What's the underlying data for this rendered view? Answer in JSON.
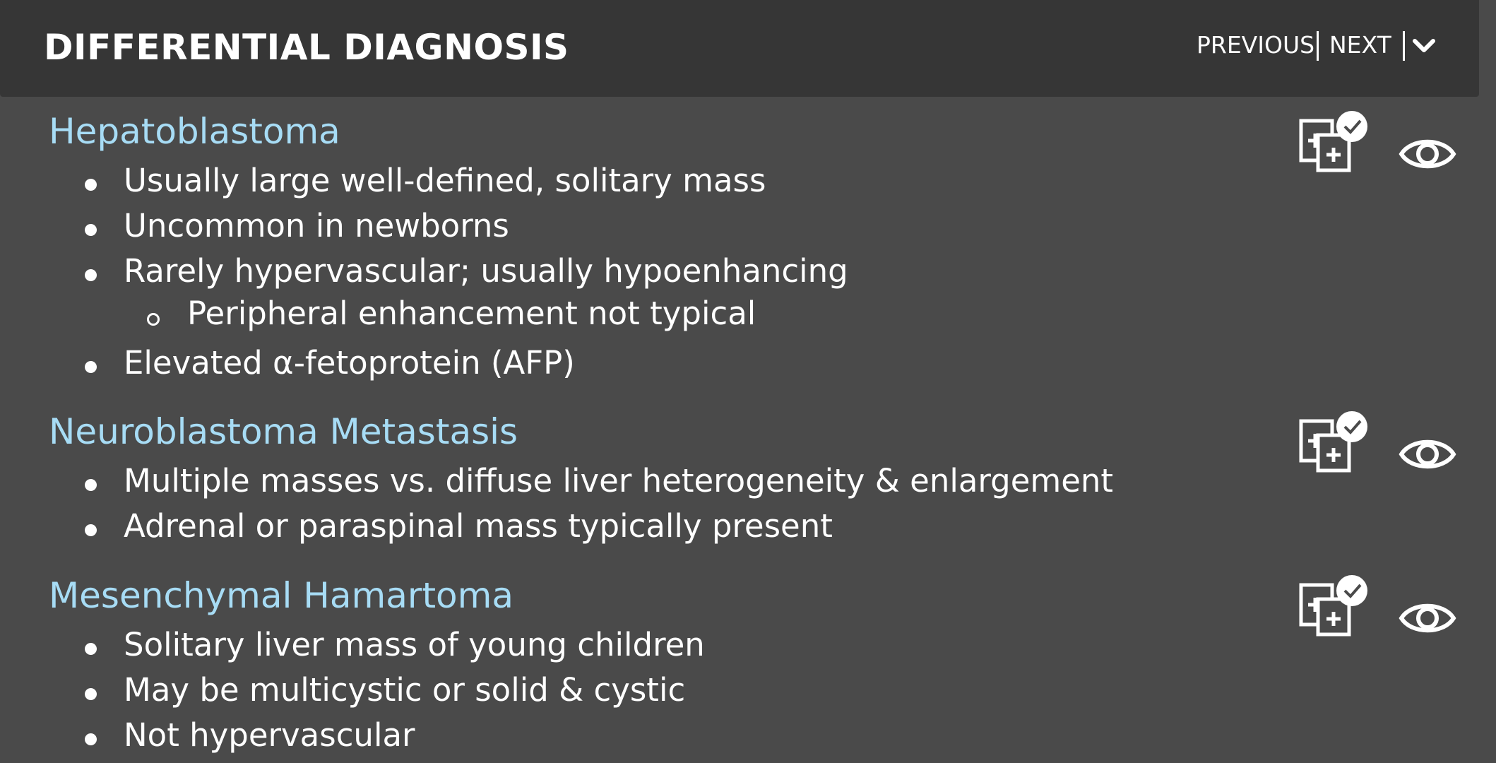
{
  "header": {
    "title": "DIFFERENTIAL DIAGNOSIS",
    "previous_label": "PREVIOUS",
    "next_label": "NEXT",
    "collapse_icon": "chevron-down-icon"
  },
  "colors": {
    "background": "#4a4a4a",
    "header_background": "#363636",
    "diagnosis_title": "#a7dcf5",
    "text": "#ffffff"
  },
  "diagnoses": [
    {
      "title": "Hepatoblastoma",
      "bullets": [
        "Usually large well-defined, solitary mass",
        "Uncommon in newborns",
        "Rarely hypervascular; usually hypoenhancing",
        "Peripheral enhancement not typical",
        "Elevated α-fetoprotein (AFP)"
      ],
      "icons": [
        "compare-images-icon",
        "eye-icon"
      ]
    },
    {
      "title": "Neuroblastoma Metastasis",
      "bullets": [
        "Multiple masses vs. diffuse liver heterogeneity & enlargement",
        "Adrenal or paraspinal mass typically present"
      ],
      "icons": [
        "compare-images-icon",
        "eye-icon"
      ]
    },
    {
      "title": "Mesenchymal Hamartoma",
      "bullets": [
        "Solitary liver mass of young children",
        "May be multicystic or solid & cystic",
        "Not hypervascular"
      ],
      "icons": [
        "compare-images-icon",
        "eye-icon"
      ]
    }
  ]
}
